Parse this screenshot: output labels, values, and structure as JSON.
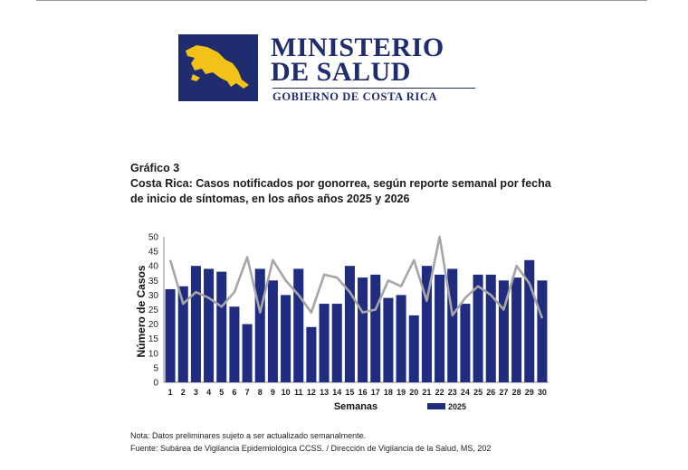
{
  "header": {
    "ministry_line1": "MINISTERIO",
    "ministry_line2": "DE SALUD",
    "government": "GOBIERNO DE COSTA RICA"
  },
  "caption": {
    "number": "Gráfico 3",
    "title": "Costa Rica: Casos notificados por gonorrea, según reporte semanal por fecha de inicio de síntomas, en  los años  años 2025 y 2026"
  },
  "colors": {
    "brand_navy": "#1f2c6e",
    "logo_yellow": "#f2c218",
    "bar_2025": "#1f2c80",
    "line_2026": "#a6a6a6"
  },
  "chart_data": {
    "type": "bar",
    "title": "",
    "xlabel": "Semanas",
    "ylabel": "Número de Casos",
    "ylim": [
      0,
      50
    ],
    "yticks": [
      0,
      5,
      10,
      15,
      20,
      25,
      30,
      35,
      40,
      45,
      50
    ],
    "grid": false,
    "legend": "bottom",
    "categories": [
      "1",
      "2",
      "3",
      "4",
      "5",
      "6",
      "7",
      "8",
      "9",
      "10",
      "11",
      "12",
      "13",
      "14",
      "15",
      "16",
      "17",
      "18",
      "19",
      "20",
      "21",
      "22",
      "23",
      "24",
      "25",
      "26",
      "27",
      "28",
      "29",
      "30"
    ],
    "series": [
      {
        "name": "2025",
        "type": "bar",
        "values": [
          32,
          33,
          40,
          39,
          38,
          26,
          20,
          39,
          35,
          30,
          39,
          19,
          27,
          27,
          40,
          36,
          37,
          29,
          30,
          23,
          40,
          37,
          39,
          27,
          37,
          37,
          35,
          36,
          42,
          35
        ]
      },
      {
        "name": "",
        "type": "line",
        "values": [
          42,
          27,
          31,
          29,
          26,
          31,
          43,
          24,
          42,
          35,
          30,
          24,
          37,
          36,
          31,
          24,
          25,
          35,
          33,
          42,
          28,
          50,
          23,
          29,
          33,
          30,
          25,
          40,
          34,
          22
        ]
      }
    ]
  },
  "notes": {
    "note": "Nota: Datos preliminares sujeto a ser actualizado semanalmente.",
    "source": "Fuente: Subárea de Vigilancia Epidemiológica CCSS. / Dirección de Vigilancia de la Salud, MS, 202"
  }
}
